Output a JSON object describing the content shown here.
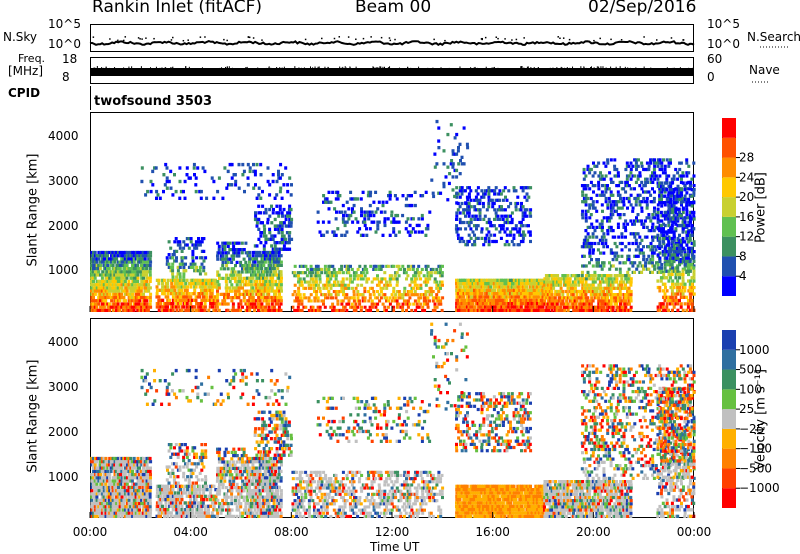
{
  "header": {
    "station": "Rankin Inlet (fitACF)",
    "beam": "Beam 00",
    "date": "02/Sep/2016"
  },
  "top_panels": {
    "nsky": {
      "label": "N.Sky",
      "tick_hi": "10^5",
      "tick_lo": "10^0",
      "right_label": "N.Search",
      "right_hi": "10^5",
      "right_lo": "10^0"
    },
    "freq": {
      "label_line1": "Freq.",
      "label_line2": "[MHz]",
      "tick_hi": "18",
      "tick_lo": "8",
      "right_label": "Nave",
      "right_hi": "60",
      "right_lo": "0"
    },
    "cpid": {
      "label": "CPID",
      "value": "twofsound 3503"
    }
  },
  "chart_data": [
    {
      "type": "heatmap",
      "name": "power",
      "ylabel": "Slant Range [km]",
      "yticks": [
        "1000",
        "2000",
        "3000",
        "4000"
      ],
      "yrange": [
        180,
        4500
      ],
      "colorbar": {
        "label": "Power [dB]",
        "ticks": [
          "4",
          "8",
          "12",
          "16",
          "20",
          "24",
          "28"
        ],
        "colors": [
          "#0000ff",
          "#2050b0",
          "#3c9060",
          "#60c050",
          "#c8d030",
          "#ffc800",
          "#ff8c00",
          "#ff5000",
          "#ff0000"
        ]
      }
    },
    {
      "type": "heatmap",
      "name": "velocity",
      "ylabel": "Slant Range [km]",
      "yticks": [
        "1000",
        "2000",
        "3000",
        "4000"
      ],
      "yrange": [
        180,
        4500
      ],
      "colorbar": {
        "label": "Velocity [m s⁻¹]",
        "ticks": [
          "1000",
          "500",
          "100",
          "25",
          "−25",
          "−100",
          "−500",
          "−1000"
        ],
        "colors": [
          "#1a3fb0",
          "#2f6fa0",
          "#3a9060",
          "#66c040",
          "#c0c0c0",
          "#ffb000",
          "#ff8000",
          "#ff4000",
          "#ff0000"
        ]
      }
    }
  ],
  "xaxis": {
    "label": "Time UT",
    "ticks": [
      "00:00",
      "04:00",
      "08:00",
      "12:00",
      "16:00",
      "20:00",
      "00:00"
    ]
  }
}
